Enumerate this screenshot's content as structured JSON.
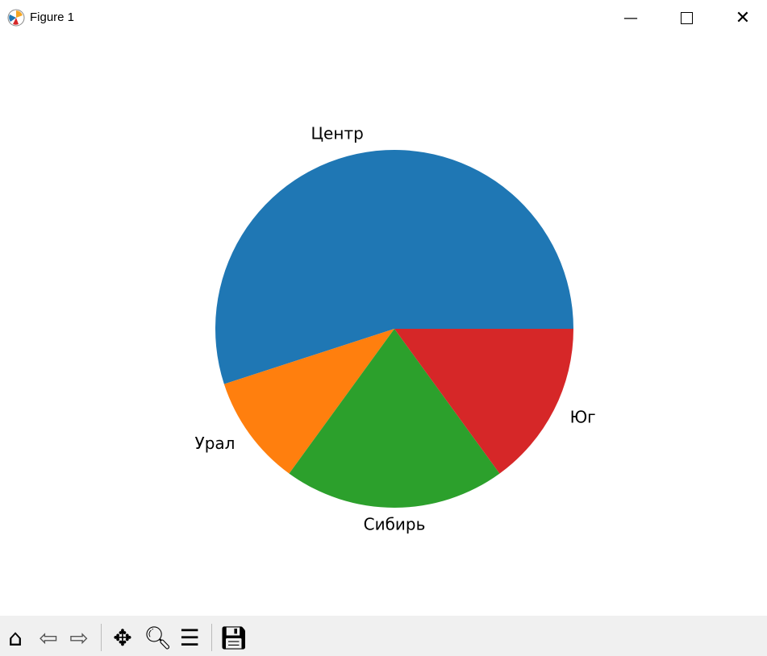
{
  "window": {
    "title": "Figure 1"
  },
  "toolbar": {
    "icons": [
      "home-icon",
      "back-icon",
      "forward-icon",
      "pan-icon",
      "zoom-icon",
      "configure-subplots-icon",
      "save-icon"
    ]
  },
  "chart_data": {
    "type": "pie",
    "categories": [
      "Центр",
      "Урал",
      "Сибирь",
      "Юг"
    ],
    "values": [
      55,
      10,
      20,
      15
    ],
    "colors": [
      "#1f77b4",
      "#ff7f0e",
      "#2ca02c",
      "#d62728"
    ],
    "start_angle": 0,
    "direction": "counterclockwise"
  }
}
